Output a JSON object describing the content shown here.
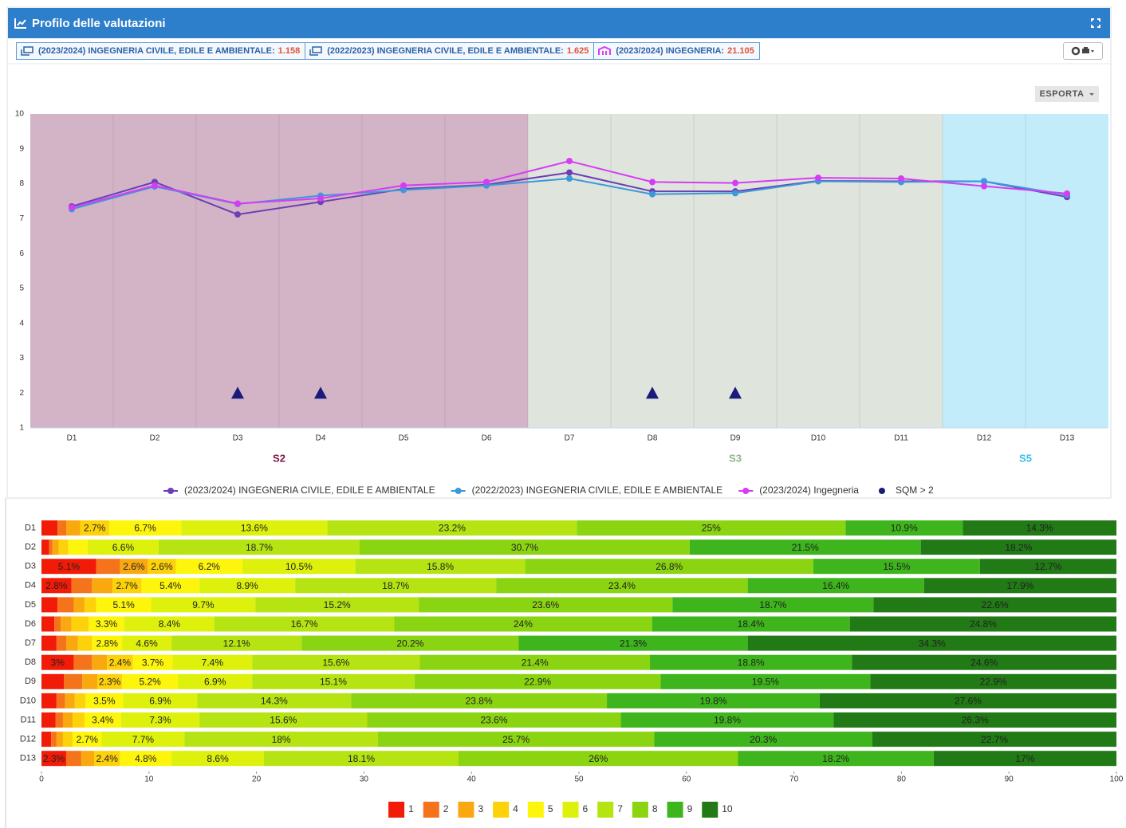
{
  "header": {
    "title": "Profilo delle valutazioni"
  },
  "toolbar": {
    "tags": [
      {
        "label": "(2023/2024) INGEGNERIA CIVILE, EDILE E AMBIENTALE:",
        "count": "1.158"
      },
      {
        "label": "(2022/2023) INGEGNERIA CIVILE, EDILE E AMBIENTALE:",
        "count": "1.625"
      },
      {
        "label": "(2023/2024) INGEGNERIA:",
        "count": "21.105"
      }
    ],
    "export": "ESPORTA"
  },
  "chart_data": [
    {
      "type": "line",
      "categories": [
        "D1",
        "D2",
        "D3",
        "D4",
        "D5",
        "D6",
        "D7",
        "D8",
        "D9",
        "D10",
        "D11",
        "D12",
        "D13"
      ],
      "ylim": [
        1,
        10
      ],
      "yticks": [
        1,
        2,
        3,
        4,
        5,
        6,
        7,
        8,
        9,
        10
      ],
      "bands": [
        {
          "label": "S2",
          "from": "D1",
          "to": "D6",
          "color": "#d3b4c7",
          "label_color": "#7b1546"
        },
        {
          "label": "S3",
          "from": "D7",
          "to": "D11",
          "color": "#dfe4dc",
          "label_color": "#8fb48a"
        },
        {
          "label": "S5",
          "from": "D12",
          "to": "D13",
          "color": "#c2ecfa",
          "label_color": "#38bdf0"
        }
      ],
      "series": [
        {
          "name": "(2023/2024) INGEGNERIA CIVILE, EDILE E AMBIENTALE",
          "color": "#6b3fb5",
          "values": [
            7.35,
            8.05,
            7.12,
            7.48,
            7.85,
            7.97,
            8.32,
            7.78,
            7.78,
            8.08,
            8.07,
            8.07,
            7.62
          ]
        },
        {
          "name": "(2022/2023) INGEGNERIA CIVILE, EDILE E AMBIENTALE",
          "color": "#3a9ad9",
          "values": [
            7.27,
            7.92,
            7.42,
            7.66,
            7.82,
            7.95,
            8.15,
            7.7,
            7.73,
            8.07,
            8.05,
            8.07,
            7.68
          ]
        },
        {
          "name": "(2023/2024) Ingegneria",
          "color": "#d63cf5",
          "values": [
            7.32,
            7.95,
            7.43,
            7.58,
            7.95,
            8.05,
            8.65,
            8.05,
            8.02,
            8.17,
            8.15,
            7.93,
            7.72
          ]
        },
        {
          "name": "SQM > 2",
          "color": "#1a1a7a",
          "type": "scatter",
          "marker": "triangle",
          "values": [
            null,
            null,
            2,
            2,
            null,
            null,
            null,
            2,
            2,
            null,
            null,
            null,
            null
          ]
        }
      ],
      "legend": "bottom"
    },
    {
      "type": "bar",
      "orientation": "horizontal",
      "stacked": true,
      "categories": [
        "D1",
        "D2",
        "D3",
        "D4",
        "D5",
        "D6",
        "D7",
        "D8",
        "D9",
        "D10",
        "D11",
        "D12",
        "D13"
      ],
      "xlim": [
        0,
        100
      ],
      "xticks": [
        0,
        10,
        20,
        30,
        40,
        50,
        60,
        70,
        80,
        90,
        100
      ],
      "series": [
        {
          "name": "1",
          "color": "#f21b07",
          "values": [
            1.5,
            0.7,
            5.1,
            2.8,
            1.5,
            1.2,
            1.4,
            3,
            2.1,
            1.4,
            1.3,
            0.9,
            2.3
          ],
          "value_labels": [
            null,
            null,
            "5.1%",
            "2.8%",
            null,
            null,
            null,
            "3%",
            null,
            null,
            null,
            null,
            "2.3%"
          ]
        },
        {
          "name": "2",
          "color": "#f5731b",
          "values": [
            0.8,
            0.3,
            2.2,
            1.9,
            1.5,
            0.6,
            0.9,
            1.7,
            1.7,
            0.8,
            0.7,
            0.5,
            1.4
          ]
        },
        {
          "name": "3",
          "color": "#f9a90f",
          "values": [
            1.3,
            0.6,
            2.6,
            1.9,
            1.0,
            1.0,
            1.1,
            1.4,
            1.4,
            0.9,
            0.9,
            0.6,
            1.2
          ],
          "value_labels": [
            null,
            null,
            "2.6%",
            null,
            null,
            null,
            null,
            null,
            null,
            null,
            null,
            null,
            null
          ]
        },
        {
          "name": "4",
          "color": "#fdd20a",
          "values": [
            2.7,
            0.9,
            2.6,
            2.7,
            1.1,
            1.6,
            1.3,
            2.4,
            2.3,
            1.0,
            1.1,
            0.9,
            2.4
          ],
          "value_labels": [
            "2.7%",
            null,
            "2.6%",
            "2.7%",
            null,
            null,
            null,
            "2.4%",
            "2.3%",
            null,
            null,
            null,
            "2.4%"
          ]
        },
        {
          "name": "5",
          "color": "#fdf50c",
          "values": [
            6.7,
            1.8,
            6.2,
            5.4,
            5.1,
            3.3,
            2.8,
            3.7,
            5.2,
            3.5,
            3.4,
            2.7,
            4.8
          ],
          "value_labels": [
            "6.7%",
            null,
            "6.2%",
            "5.4%",
            "5.1%",
            "3.3%",
            "2.8%",
            "3.7%",
            "5.2%",
            "3.5%",
            "3.4%",
            "2.7%",
            "4.8%"
          ]
        },
        {
          "name": "6",
          "color": "#ddf10c",
          "values": [
            13.6,
            6.6,
            10.5,
            8.9,
            9.7,
            8.4,
            4.6,
            7.4,
            6.9,
            6.9,
            7.3,
            7.7,
            8.6
          ],
          "value_labels": [
            "13.6%",
            "6.6%",
            "10.5%",
            "8.9%",
            "9.7%",
            "8.4%",
            "4.6%",
            "7.4%",
            "6.9%",
            "6.9%",
            "7.3%",
            "7.7%",
            "8.6%"
          ]
        },
        {
          "name": "7",
          "color": "#b5e412",
          "values": [
            23.2,
            18.7,
            15.8,
            18.7,
            15.2,
            16.7,
            12.1,
            15.6,
            15.1,
            14.3,
            15.6,
            18,
            18.1
          ],
          "value_labels": [
            "23.2%",
            "18.7%",
            "15.8%",
            "18.7%",
            "15.2%",
            "16.7%",
            "12.1%",
            "15.6%",
            "15.1%",
            "14.3%",
            "15.6%",
            "18%",
            "18.1%"
          ]
        },
        {
          "name": "8",
          "color": "#8bd411",
          "values": [
            25,
            30.7,
            26.8,
            23.4,
            23.6,
            24,
            20.2,
            21.4,
            22.9,
            23.8,
            23.6,
            25.7,
            26
          ],
          "value_labels": [
            "25%",
            "30.7%",
            "26.8%",
            "23.4%",
            "23.6%",
            "24%",
            "20.2%",
            "21.4%",
            "22.9%",
            "23.8%",
            "23.6%",
            "25.7%",
            "26%"
          ]
        },
        {
          "name": "9",
          "color": "#3eb51c",
          "values": [
            10.9,
            21.5,
            15.5,
            16.4,
            18.7,
            18.4,
            21.3,
            18.8,
            19.5,
            19.8,
            19.8,
            20.3,
            18.2
          ],
          "value_labels": [
            "10.9%",
            "21.5%",
            "15.5%",
            "16.4%",
            "18.7%",
            "18.4%",
            "21.3%",
            "18.8%",
            "19.5%",
            "19.8%",
            "19.8%",
            "20.3%",
            "18.2%"
          ]
        },
        {
          "name": "10",
          "color": "#217a15",
          "values": [
            14.3,
            18.2,
            12.7,
            17.9,
            22.6,
            24.8,
            34.3,
            24.6,
            22.9,
            27.6,
            26.3,
            22.7,
            17
          ],
          "value_labels": [
            "14.3%",
            "18.2%",
            "12.7%",
            "17.9%",
            "22.6%",
            "24.8%",
            "34.3%",
            "24.6%",
            "22.9%",
            "27.6%",
            "26.3%",
            "22.7%",
            "17%"
          ]
        }
      ],
      "legend": "bottom"
    }
  ]
}
